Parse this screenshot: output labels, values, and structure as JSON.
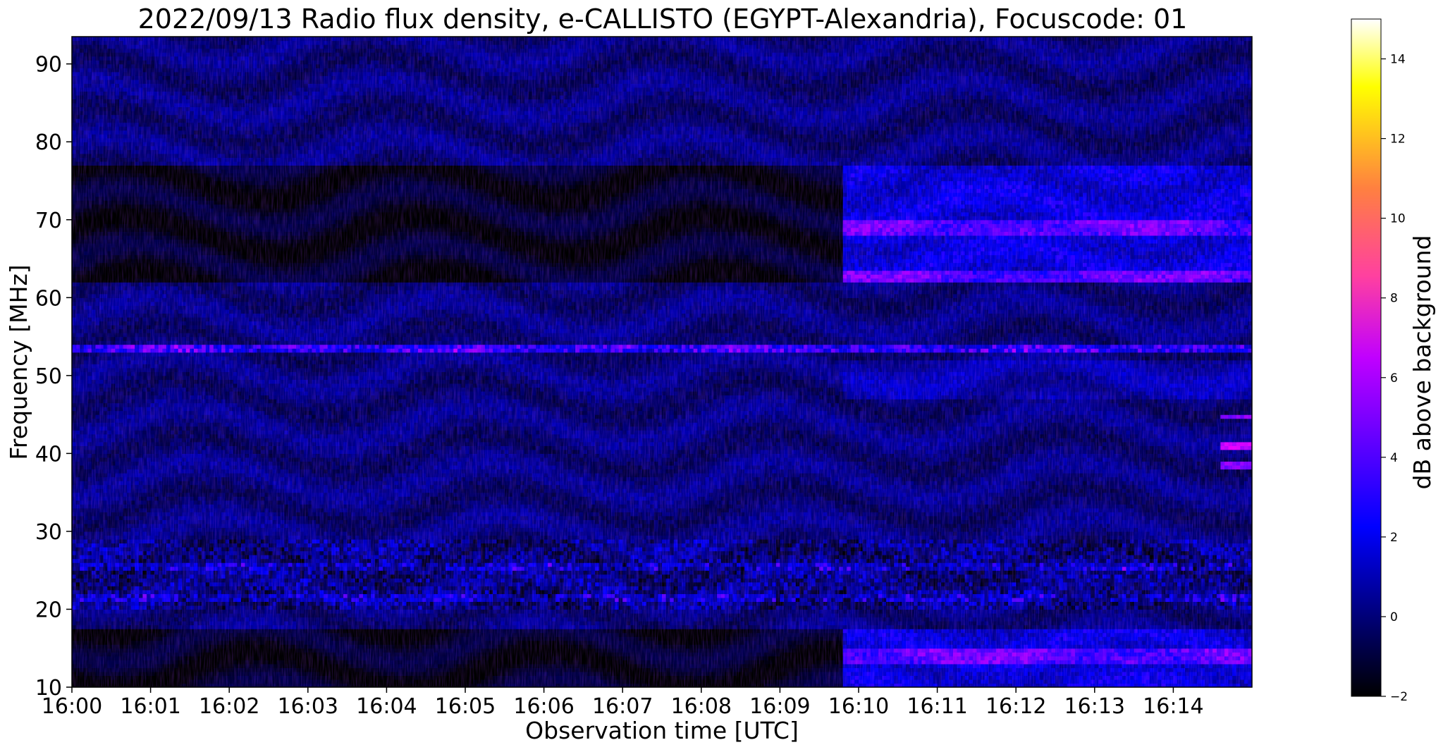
{
  "chart_data": {
    "type": "heatmap",
    "title": "2022/09/13  Radio flux density, e-CALLISTO (EGYPT-Alexandria), Focuscode: 01",
    "xlabel": "Observation time [UTC]",
    "ylabel": "Frequency [MHz]",
    "colorbar_label": "dB above background",
    "x_tick_labels": [
      "16:00",
      "16:01",
      "16:02",
      "16:03",
      "16:04",
      "16:05",
      "16:06",
      "16:07",
      "16:08",
      "16:09",
      "16:10",
      "16:11",
      "16:12",
      "16:13",
      "16:14"
    ],
    "x_range_minutes": [
      0,
      15
    ],
    "y_ticks": [
      10,
      20,
      30,
      40,
      50,
      60,
      70,
      80,
      90
    ],
    "y_range": [
      10,
      93.5
    ],
    "colorbar_ticks": [
      -2,
      0,
      2,
      4,
      6,
      8,
      10,
      12,
      14
    ],
    "colorbar_range": [
      -2,
      15
    ],
    "colormap": "gnuplot2",
    "colormap_stops": [
      "#000000",
      "#0000ff",
      "#ff00ff",
      "#ff8000",
      "#ffff00",
      "#ffffff"
    ],
    "regions": {
      "station_change_time_minutes": 9.8,
      "upper_dark_band_mhz": [
        62,
        77
      ],
      "lower_dark_band_mhz": [
        10,
        17.5
      ],
      "interference_band_mhz": [
        20,
        29
      ],
      "bright_line_mhz": [
        53,
        54
      ],
      "late_emission_mhz": [
        38,
        45
      ]
    }
  }
}
